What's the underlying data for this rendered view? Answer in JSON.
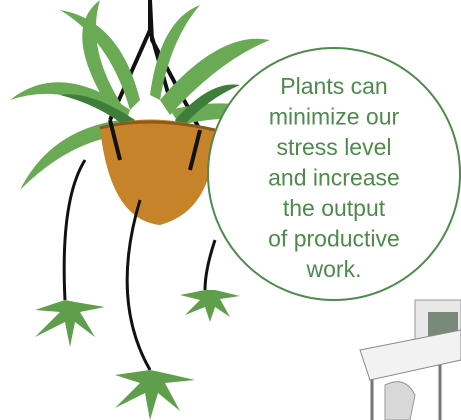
{
  "callout": {
    "lines": [
      "Plants can",
      "minimize our",
      "stress level",
      "and increase",
      "the output",
      "of productive",
      "work."
    ]
  }
}
